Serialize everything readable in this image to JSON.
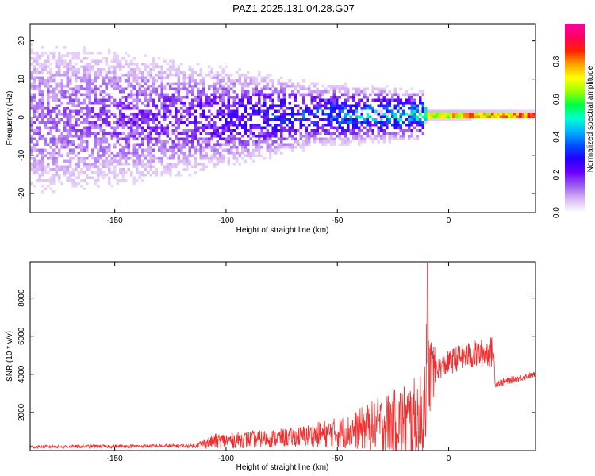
{
  "figure_title": "PAZ1.2025.131.04.28.G07",
  "chart_data": [
    {
      "type": "heatmap",
      "title": "",
      "xlabel": "Height of straight line (km)",
      "ylabel": "Frequency (Hz)",
      "xlim": [
        -188,
        39
      ],
      "ylim": [
        -25,
        24.5
      ],
      "xticks": [
        -150,
        -100,
        -50,
        0
      ],
      "yticks": [
        -20,
        -10,
        0,
        10,
        20
      ],
      "colorbar": {
        "label": "Normalized spectral amplitude",
        "ticks": [
          0.0,
          0.2,
          0.4,
          0.6,
          0.8
        ],
        "range": [
          0,
          1
        ],
        "colors": [
          "#ffffff",
          "#d9b8f5",
          "#9b5cf0",
          "#6a00ff",
          "#2200ff",
          "#0050ff",
          "#00b4ff",
          "#00ffd0",
          "#00ff40",
          "#a0ff00",
          "#ffff00",
          "#ffa000",
          "#ff2000",
          "#ff0060",
          "#ff00a0"
        ]
      },
      "band": {
        "description_points": [
          {
            "x": -188,
            "freq_center": 0,
            "spread": 12,
            "amp": 0.1
          },
          {
            "x": -120,
            "freq_center": 0,
            "spread": 8,
            "amp": 0.15
          },
          {
            "x": -60,
            "freq_center": 1,
            "spread": 4,
            "amp": 0.25
          },
          {
            "x": -12,
            "freq_center": 1,
            "spread": 3,
            "amp": 0.35
          },
          {
            "x": -10,
            "freq_center": 1,
            "spread": 1,
            "amp": 0.75
          },
          {
            "x": 39,
            "freq_center": 1,
            "spread": 0.6,
            "amp": 0.9
          }
        ]
      }
    },
    {
      "type": "line",
      "title": "",
      "xlabel": "Height of straight line (km)",
      "ylabel": "SNR (10 * v/v)",
      "xlim": [
        -188,
        39
      ],
      "ylim": [
        0,
        9900
      ],
      "xticks": [
        -150,
        -100,
        -50,
        0
      ],
      "yticks": [
        2000,
        4000,
        6000,
        8000
      ],
      "color": "#f03030",
      "envelope": [
        {
          "x": -188,
          "base": 200,
          "noise": 80
        },
        {
          "x": -115,
          "base": 250,
          "noise": 100
        },
        {
          "x": -105,
          "base": 500,
          "noise": 400
        },
        {
          "x": -70,
          "base": 700,
          "noise": 500
        },
        {
          "x": -45,
          "base": 1000,
          "noise": 900
        },
        {
          "x": -30,
          "base": 1400,
          "noise": 1500
        },
        {
          "x": -20,
          "base": 1600,
          "noise": 2000
        },
        {
          "x": -12,
          "base": 1500,
          "noise": 2500
        },
        {
          "x": -10,
          "base": 4000,
          "noise": 3000
        },
        {
          "x": -5,
          "base": 4300,
          "noise": 600
        },
        {
          "x": 5,
          "base": 4900,
          "noise": 700
        },
        {
          "x": 20,
          "base": 5200,
          "noise": 800
        },
        {
          "x": 21,
          "base": 3500,
          "noise": 200
        },
        {
          "x": 39,
          "base": 4000,
          "noise": 150
        }
      ],
      "peak": {
        "x": -9.5,
        "y": 9800
      }
    }
  ]
}
